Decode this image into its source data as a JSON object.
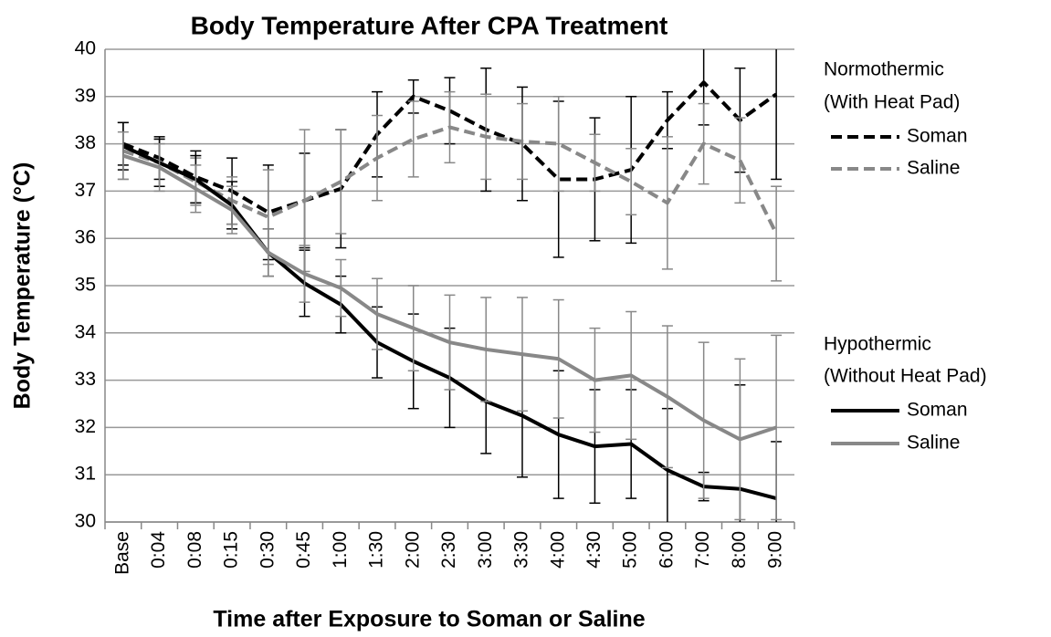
{
  "chart_data": {
    "type": "line",
    "title": "Body Temperature After CPA  Treatment",
    "x_label": "Time after Exposure to Soman or Saline",
    "y_label": "Body Temperature (°C)",
    "categories": [
      "Base",
      "0:04",
      "0:08",
      "0:15",
      "0:30",
      "0:45",
      "1:00",
      "1:30",
      "2:00",
      "2:30",
      "3:00",
      "3:30",
      "4:00",
      "4:30",
      "5:00",
      "6:00",
      "7:00",
      "8:00",
      "9:00"
    ],
    "ylim": [
      30,
      40
    ],
    "yticks": [
      30,
      31,
      32,
      33,
      34,
      35,
      36,
      37,
      38,
      39,
      40
    ],
    "grid": true,
    "groups": [
      {
        "title": [
          "Normothermic",
          "(With Heat Pad)"
        ],
        "series": [
          {
            "name": "Soman",
            "color": "#000000",
            "dashed": true,
            "values": [
              38.0,
              37.7,
              37.3,
              37.0,
              36.55,
              36.8,
              37.05,
              38.2,
              39.0,
              38.7,
              38.3,
              38.0,
              37.25,
              37.25,
              37.45,
              38.5,
              39.3,
              38.5,
              39.05
            ],
            "errors": [
              0.45,
              0.45,
              0.55,
              0.7,
              1.0,
              1.0,
              1.25,
              0.9,
              0.35,
              0.7,
              1.3,
              1.2,
              1.65,
              1.3,
              1.55,
              0.6,
              0.9,
              1.1,
              1.8
            ]
          },
          {
            "name": "Saline",
            "color": "#888888",
            "dashed": true,
            "values": [
              37.85,
              37.6,
              37.2,
              36.8,
              36.45,
              36.8,
              37.2,
              37.7,
              38.1,
              38.35,
              38.15,
              38.05,
              38.0,
              37.6,
              37.2,
              36.75,
              38.0,
              37.65,
              36.1
            ],
            "errors": [
              0.6,
              0.5,
              0.5,
              0.5,
              1.0,
              1.5,
              1.1,
              0.9,
              0.8,
              0.75,
              0.9,
              0.8,
              1.0,
              0.6,
              0.7,
              1.4,
              0.85,
              0.9,
              1.0
            ]
          }
        ]
      },
      {
        "title": [
          "Hypothermic",
          "(Without Heat Pad)"
        ],
        "series": [
          {
            "name": "Soman",
            "color": "#000000",
            "dashed": false,
            "values": [
              37.95,
              37.6,
              37.25,
              36.7,
              35.7,
              35.05,
              34.6,
              33.8,
              33.4,
              33.05,
              32.55,
              32.25,
              31.85,
              31.6,
              31.65,
              31.1,
              30.75,
              30.7,
              30.5
            ],
            "errors": [
              0.5,
              0.5,
              0.5,
              0.5,
              0.5,
              0.7,
              0.6,
              0.75,
              1.0,
              1.05,
              1.1,
              1.3,
              1.35,
              1.2,
              1.15,
              1.3,
              0.3,
              2.2,
              1.2
            ]
          },
          {
            "name": "Saline",
            "color": "#888888",
            "dashed": false,
            "values": [
              37.75,
              37.5,
              37.05,
              36.6,
              35.7,
              35.25,
              34.95,
              34.4,
              34.1,
              33.8,
              33.65,
              33.55,
              33.45,
              33.0,
              33.1,
              32.65,
              32.15,
              31.75,
              32.0
            ],
            "errors": [
              0.5,
              0.5,
              0.5,
              0.5,
              0.5,
              0.6,
              0.6,
              0.75,
              0.9,
              1.0,
              1.1,
              1.2,
              1.25,
              1.1,
              1.35,
              1.5,
              1.65,
              1.7,
              1.95
            ]
          }
        ]
      }
    ]
  }
}
